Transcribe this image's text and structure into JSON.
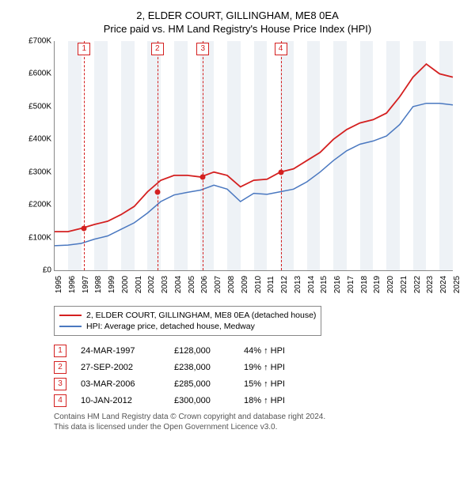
{
  "title_line1": "2, ELDER COURT, GILLINGHAM, ME8 0EA",
  "title_line2": "Price paid vs. HM Land Registry's House Price Index (HPI)",
  "chart": {
    "type": "line",
    "x_min": 1995,
    "x_max": 2025,
    "y_min": 0,
    "y_max": 700000,
    "y_ticks": [
      0,
      100000,
      200000,
      300000,
      400000,
      500000,
      600000,
      700000
    ],
    "y_tick_labels": [
      "£0",
      "£100K",
      "£200K",
      "£300K",
      "£400K",
      "£500K",
      "£600K",
      "£700K"
    ],
    "x_ticks": [
      1995,
      1996,
      1997,
      1998,
      1999,
      2000,
      2001,
      2002,
      2003,
      2004,
      2005,
      2006,
      2007,
      2008,
      2009,
      2010,
      2011,
      2012,
      2013,
      2014,
      2015,
      2016,
      2017,
      2018,
      2019,
      2020,
      2021,
      2022,
      2023,
      2024,
      2025
    ],
    "band_color": "#eef2f6",
    "red_line_color": "#d42020",
    "blue_line_color": "#4a78c0",
    "marker_color": "#d42020",
    "background": "#ffffff",
    "series_red": [
      [
        1995,
        118000
      ],
      [
        1996,
        118000
      ],
      [
        1997,
        128000
      ],
      [
        1998,
        140000
      ],
      [
        1999,
        150000
      ],
      [
        2000,
        170000
      ],
      [
        2001,
        195000
      ],
      [
        2002,
        240000
      ],
      [
        2003,
        275000
      ],
      [
        2004,
        290000
      ],
      [
        2005,
        290000
      ],
      [
        2006,
        285000
      ],
      [
        2007,
        300000
      ],
      [
        2008,
        290000
      ],
      [
        2009,
        255000
      ],
      [
        2010,
        275000
      ],
      [
        2011,
        278000
      ],
      [
        2012,
        300000
      ],
      [
        2013,
        310000
      ],
      [
        2014,
        335000
      ],
      [
        2015,
        360000
      ],
      [
        2016,
        400000
      ],
      [
        2017,
        430000
      ],
      [
        2018,
        450000
      ],
      [
        2019,
        460000
      ],
      [
        2020,
        480000
      ],
      [
        2021,
        530000
      ],
      [
        2022,
        590000
      ],
      [
        2023,
        630000
      ],
      [
        2024,
        600000
      ],
      [
        2025,
        590000
      ]
    ],
    "series_blue": [
      [
        1995,
        75000
      ],
      [
        1996,
        77000
      ],
      [
        1997,
        82000
      ],
      [
        1998,
        95000
      ],
      [
        1999,
        105000
      ],
      [
        2000,
        125000
      ],
      [
        2001,
        145000
      ],
      [
        2002,
        175000
      ],
      [
        2003,
        210000
      ],
      [
        2004,
        230000
      ],
      [
        2005,
        238000
      ],
      [
        2006,
        245000
      ],
      [
        2007,
        260000
      ],
      [
        2008,
        248000
      ],
      [
        2009,
        210000
      ],
      [
        2010,
        235000
      ],
      [
        2011,
        232000
      ],
      [
        2012,
        240000
      ],
      [
        2013,
        248000
      ],
      [
        2014,
        270000
      ],
      [
        2015,
        300000
      ],
      [
        2016,
        335000
      ],
      [
        2017,
        365000
      ],
      [
        2018,
        385000
      ],
      [
        2019,
        395000
      ],
      [
        2020,
        410000
      ],
      [
        2021,
        445000
      ],
      [
        2022,
        500000
      ],
      [
        2023,
        510000
      ],
      [
        2024,
        510000
      ],
      [
        2025,
        505000
      ]
    ],
    "markers": [
      {
        "n": "1",
        "year": 1997.22,
        "value": 128000
      },
      {
        "n": "2",
        "year": 2002.74,
        "value": 238000
      },
      {
        "n": "3",
        "year": 2006.17,
        "value": 285000
      },
      {
        "n": "4",
        "year": 2012.03,
        "value": 300000
      }
    ]
  },
  "legend": {
    "red": "2, ELDER COURT, GILLINGHAM, ME8 0EA (detached house)",
    "blue": "HPI: Average price, detached house, Medway"
  },
  "transactions": [
    {
      "n": "1",
      "date": "24-MAR-1997",
      "price": "£128,000",
      "hpi": "44% ↑ HPI"
    },
    {
      "n": "2",
      "date": "27-SEP-2002",
      "price": "£238,000",
      "hpi": "19% ↑ HPI"
    },
    {
      "n": "3",
      "date": "03-MAR-2006",
      "price": "£285,000",
      "hpi": "15% ↑ HPI"
    },
    {
      "n": "4",
      "date": "10-JAN-2012",
      "price": "£300,000",
      "hpi": "18% ↑ HPI"
    }
  ],
  "footer_line1": "Contains HM Land Registry data © Crown copyright and database right 2024.",
  "footer_line2": "This data is licensed under the Open Government Licence v3.0."
}
